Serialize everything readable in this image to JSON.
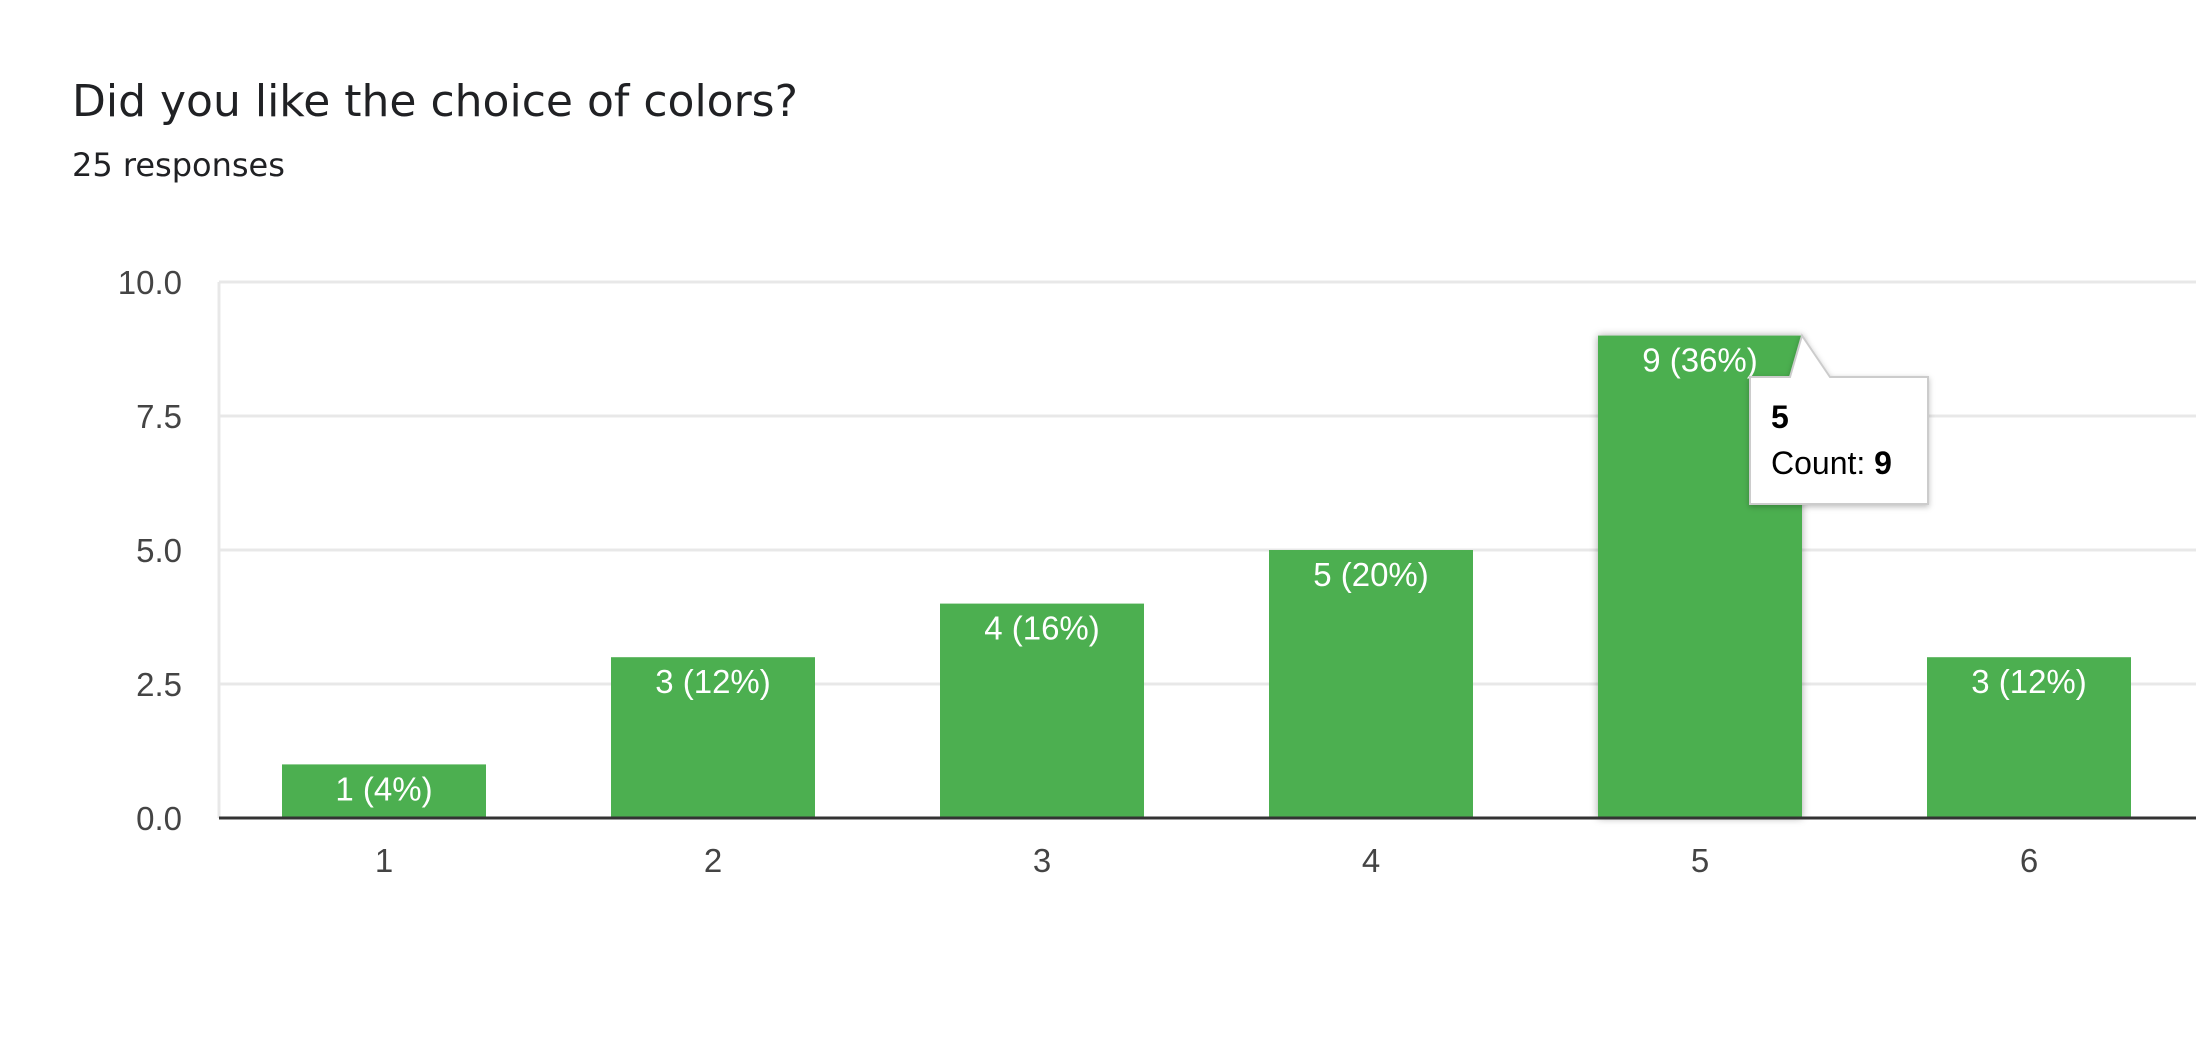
{
  "question": {
    "title": "Did you like the choice of colors?",
    "responses": "25 responses"
  },
  "colors": {
    "bar": "#4caf50",
    "grid": "#e8e8e8",
    "axis": "#333333",
    "tooltip_border": "#cccccc"
  },
  "tooltip": {
    "category": "5",
    "label": "Count: ",
    "value": "9"
  },
  "chart_data": {
    "type": "bar",
    "title": "Did you like the choice of colors?",
    "subtitle": "25 responses",
    "categories": [
      "1",
      "2",
      "3",
      "4",
      "5",
      "6"
    ],
    "values": [
      1,
      3,
      4,
      5,
      9,
      3
    ],
    "data_labels": [
      "1 (4%)",
      "3 (12%)",
      "4 (16%)",
      "5 (20%)",
      "9 (36%)",
      "3 (12%)"
    ],
    "yticks": [
      "0.0",
      "2.5",
      "5.0",
      "7.5",
      "10.0"
    ],
    "ylim": [
      0,
      10
    ],
    "grid": true,
    "highlighted_category": "5"
  }
}
